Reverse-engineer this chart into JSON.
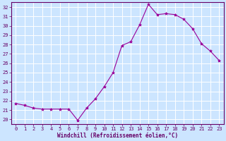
{
  "x": [
    0,
    1,
    2,
    3,
    4,
    5,
    6,
    7,
    8,
    9,
    10,
    11,
    12,
    13,
    14,
    15,
    16,
    17,
    18,
    19,
    20,
    21,
    22,
    23
  ],
  "y": [
    21.7,
    21.5,
    21.2,
    21.1,
    21.1,
    21.1,
    21.1,
    19.9,
    21.2,
    22.2,
    23.5,
    25.0,
    27.9,
    28.3,
    30.1,
    32.3,
    31.2,
    31.3,
    31.2,
    30.7,
    29.7,
    28.1,
    27.3,
    26.3
  ],
  "line_color": "#990099",
  "marker": "*",
  "marker_size": 3,
  "bg_color": "#cce5ff",
  "grid_color": "#ffffff",
  "xlabel": "Windchill (Refroidissement éolien,°C)",
  "xlabel_color": "#660066",
  "tick_color": "#660066",
  "axis_color": "#660066",
  "ylim": [
    19.5,
    32.5
  ],
  "xlim": [
    -0.5,
    23.5
  ],
  "yticks": [
    20,
    21,
    22,
    23,
    24,
    25,
    26,
    27,
    28,
    29,
    30,
    31,
    32
  ],
  "xticks": [
    0,
    1,
    2,
    3,
    4,
    5,
    6,
    7,
    8,
    9,
    10,
    11,
    12,
    13,
    14,
    15,
    16,
    17,
    18,
    19,
    20,
    21,
    22,
    23
  ],
  "tick_fontsize": 5.0,
  "xlabel_fontsize": 5.5,
  "font_family": "monospace"
}
